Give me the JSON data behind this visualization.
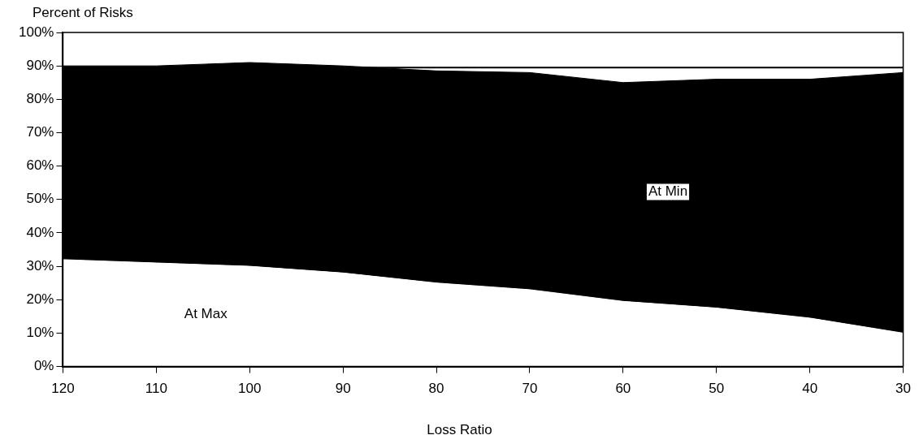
{
  "chart_data": {
    "type": "area",
    "ylabel": "Percent of Risks",
    "xlabel": "Loss Ratio",
    "stacked": true,
    "x": [
      120,
      110,
      100,
      90,
      80,
      70,
      60,
      50,
      40,
      30
    ],
    "series": [
      {
        "name": "At Max",
        "color": "#ffffff",
        "values": [
          32,
          31,
          30,
          28,
          25,
          23,
          19.5,
          17.5,
          14.5,
          10
        ]
      },
      {
        "name": "At Min",
        "color": "#000000",
        "values": [
          58,
          59,
          61,
          62,
          63.5,
          65,
          65.5,
          68.5,
          71.5,
          78
        ]
      }
    ],
    "xlim": [
      120,
      30
    ],
    "xticks": [
      120,
      110,
      100,
      90,
      80,
      70,
      60,
      50,
      40,
      30
    ],
    "ylim": [
      0,
      100
    ],
    "yticks": [
      {
        "value": 0,
        "label": "0%"
      },
      {
        "value": 10,
        "label": "10%"
      },
      {
        "value": 20,
        "label": "20%"
      },
      {
        "value": 30,
        "label": "30%"
      },
      {
        "value": 40,
        "label": "40%"
      },
      {
        "value": 50,
        "label": "50%"
      },
      {
        "value": 60,
        "label": "60%"
      },
      {
        "value": 70,
        "label": "70%"
      },
      {
        "value": 80,
        "label": "80%"
      },
      {
        "value": 90,
        "label": "90%"
      },
      {
        "value": 100,
        "label": "100%"
      }
    ],
    "ref_lines": [
      {
        "axis": "y",
        "value": 89.5,
        "color": "#000000"
      }
    ],
    "grid": false,
    "legend": false
  }
}
